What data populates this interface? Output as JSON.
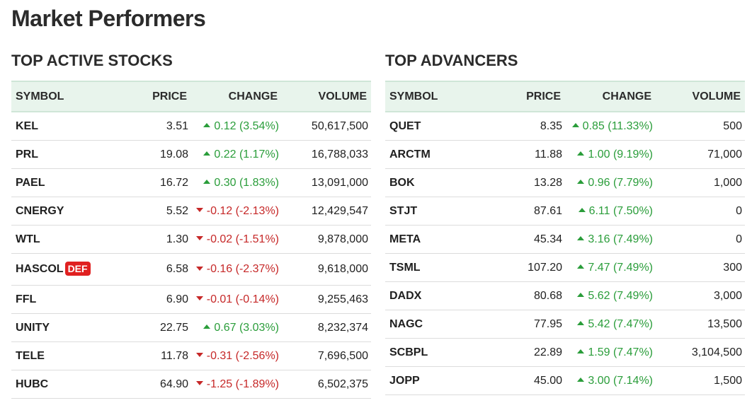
{
  "title": "Market Performers",
  "colors": {
    "up": "#2a9d3a",
    "down": "#c62828",
    "header_bg": "#e8f4ec",
    "badge": "#e02020"
  },
  "columns": [
    "SYMBOL",
    "PRICE",
    "CHANGE",
    "VOLUME"
  ],
  "active": {
    "title": "TOP ACTIVE STOCKS",
    "rows": [
      {
        "symbol": "KEL",
        "price": "3.51",
        "change": "0.12 (3.54%)",
        "dir": "up",
        "volume": "50,617,500"
      },
      {
        "symbol": "PRL",
        "price": "19.08",
        "change": "0.22 (1.17%)",
        "dir": "up",
        "volume": "16,788,033"
      },
      {
        "symbol": "PAEL",
        "price": "16.72",
        "change": "0.30 (1.83%)",
        "dir": "up",
        "volume": "13,091,000"
      },
      {
        "symbol": "CNERGY",
        "price": "5.52",
        "change": "-0.12 (-2.13%)",
        "dir": "down",
        "volume": "12,429,547"
      },
      {
        "symbol": "WTL",
        "price": "1.30",
        "change": "-0.02 (-1.51%)",
        "dir": "down",
        "volume": "9,878,000"
      },
      {
        "symbol": "HASCOL",
        "badge": "DEF",
        "price": "6.58",
        "change": "-0.16 (-2.37%)",
        "dir": "down",
        "volume": "9,618,000"
      },
      {
        "symbol": "FFL",
        "price": "6.90",
        "change": "-0.01 (-0.14%)",
        "dir": "down",
        "volume": "9,255,463"
      },
      {
        "symbol": "UNITY",
        "price": "22.75",
        "change": "0.67 (3.03%)",
        "dir": "up",
        "volume": "8,232,374"
      },
      {
        "symbol": "TELE",
        "price": "11.78",
        "change": "-0.31 (-2.56%)",
        "dir": "down",
        "volume": "7,696,500"
      },
      {
        "symbol": "HUBC",
        "price": "64.90",
        "change": "-1.25 (-1.89%)",
        "dir": "down",
        "volume": "6,502,375"
      }
    ]
  },
  "advancers": {
    "title": "TOP ADVANCERS",
    "rows": [
      {
        "symbol": "QUET",
        "price": "8.35",
        "change": "0.85 (11.33%)",
        "dir": "up",
        "volume": "500"
      },
      {
        "symbol": "ARCTM",
        "price": "11.88",
        "change": "1.00 (9.19%)",
        "dir": "up",
        "volume": "71,000"
      },
      {
        "symbol": "BOK",
        "price": "13.28",
        "change": "0.96 (7.79%)",
        "dir": "up",
        "volume": "1,000"
      },
      {
        "symbol": "STJT",
        "price": "87.61",
        "change": "6.11 (7.50%)",
        "dir": "up",
        "volume": "0"
      },
      {
        "symbol": "META",
        "price": "45.34",
        "change": "3.16 (7.49%)",
        "dir": "up",
        "volume": "0"
      },
      {
        "symbol": "TSML",
        "price": "107.20",
        "change": "7.47 (7.49%)",
        "dir": "up",
        "volume": "300"
      },
      {
        "symbol": "DADX",
        "price": "80.68",
        "change": "5.62 (7.49%)",
        "dir": "up",
        "volume": "3,000"
      },
      {
        "symbol": "NAGC",
        "price": "77.95",
        "change": "5.42 (7.47%)",
        "dir": "up",
        "volume": "13,500"
      },
      {
        "symbol": "SCBPL",
        "price": "22.89",
        "change": "1.59 (7.47%)",
        "dir": "up",
        "volume": "3,104,500"
      },
      {
        "symbol": "JOPP",
        "price": "45.00",
        "change": "3.00 (7.14%)",
        "dir": "up",
        "volume": "1,500"
      }
    ]
  }
}
